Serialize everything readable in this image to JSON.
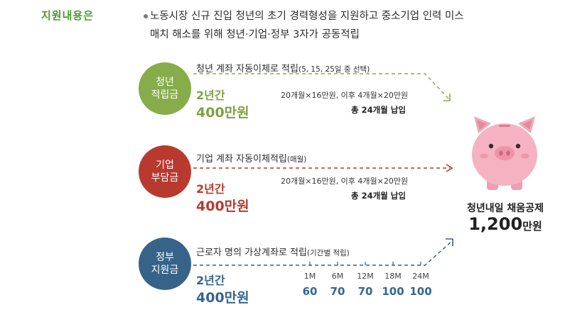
{
  "header": {
    "section_title": "지원내용은",
    "intro_line1": "노동시장 신규 진입 청년의 초기 경력형성을 지원하고 중소기업 인력 미스",
    "intro_line2": "매치 해소를 위해 청년·기업·정부 3자가 공동적립"
  },
  "youth": {
    "label_line1": "청년",
    "label_line2": "적립금",
    "desc": "청년 계좌 자동이체로 적립",
    "desc_note": "(5, 15, 25일 중 선택)",
    "period": "2년간",
    "amount": "400만원",
    "schedule": "20개월×16만원, 이후 4개월×20만원",
    "total": "총 24개월 납입",
    "color": "#86ad4a"
  },
  "company": {
    "label_line1": "기업",
    "label_line2": "부담금",
    "desc": "기업 계좌 자동이체적립",
    "desc_note": "(매월)",
    "period": "2년간",
    "amount": "400만원",
    "schedule": "20개월×16만원, 이후 4개월×20만원",
    "total": "총 24개월 납입",
    "color": "#b83a2e"
  },
  "government": {
    "label_line1": "정부",
    "label_line2": "지원금",
    "desc": "근로자 명의 가상계좌로 적립",
    "desc_note": "(기간별 적립)",
    "period": "2년간",
    "amount": "400만원",
    "milestones": [
      {
        "month": "1M",
        "value": "60"
      },
      {
        "month": "6M",
        "value": "70"
      },
      {
        "month": "12M",
        "value": "70"
      },
      {
        "month": "18M",
        "value": "100"
      },
      {
        "month": "24M",
        "value": "100"
      }
    ],
    "color": "#376389"
  },
  "result": {
    "title": "청년내일 채움공제",
    "amount_number": "1,200",
    "amount_unit": "만원"
  },
  "icons": {
    "piggy": "piggy-bank-icon"
  }
}
